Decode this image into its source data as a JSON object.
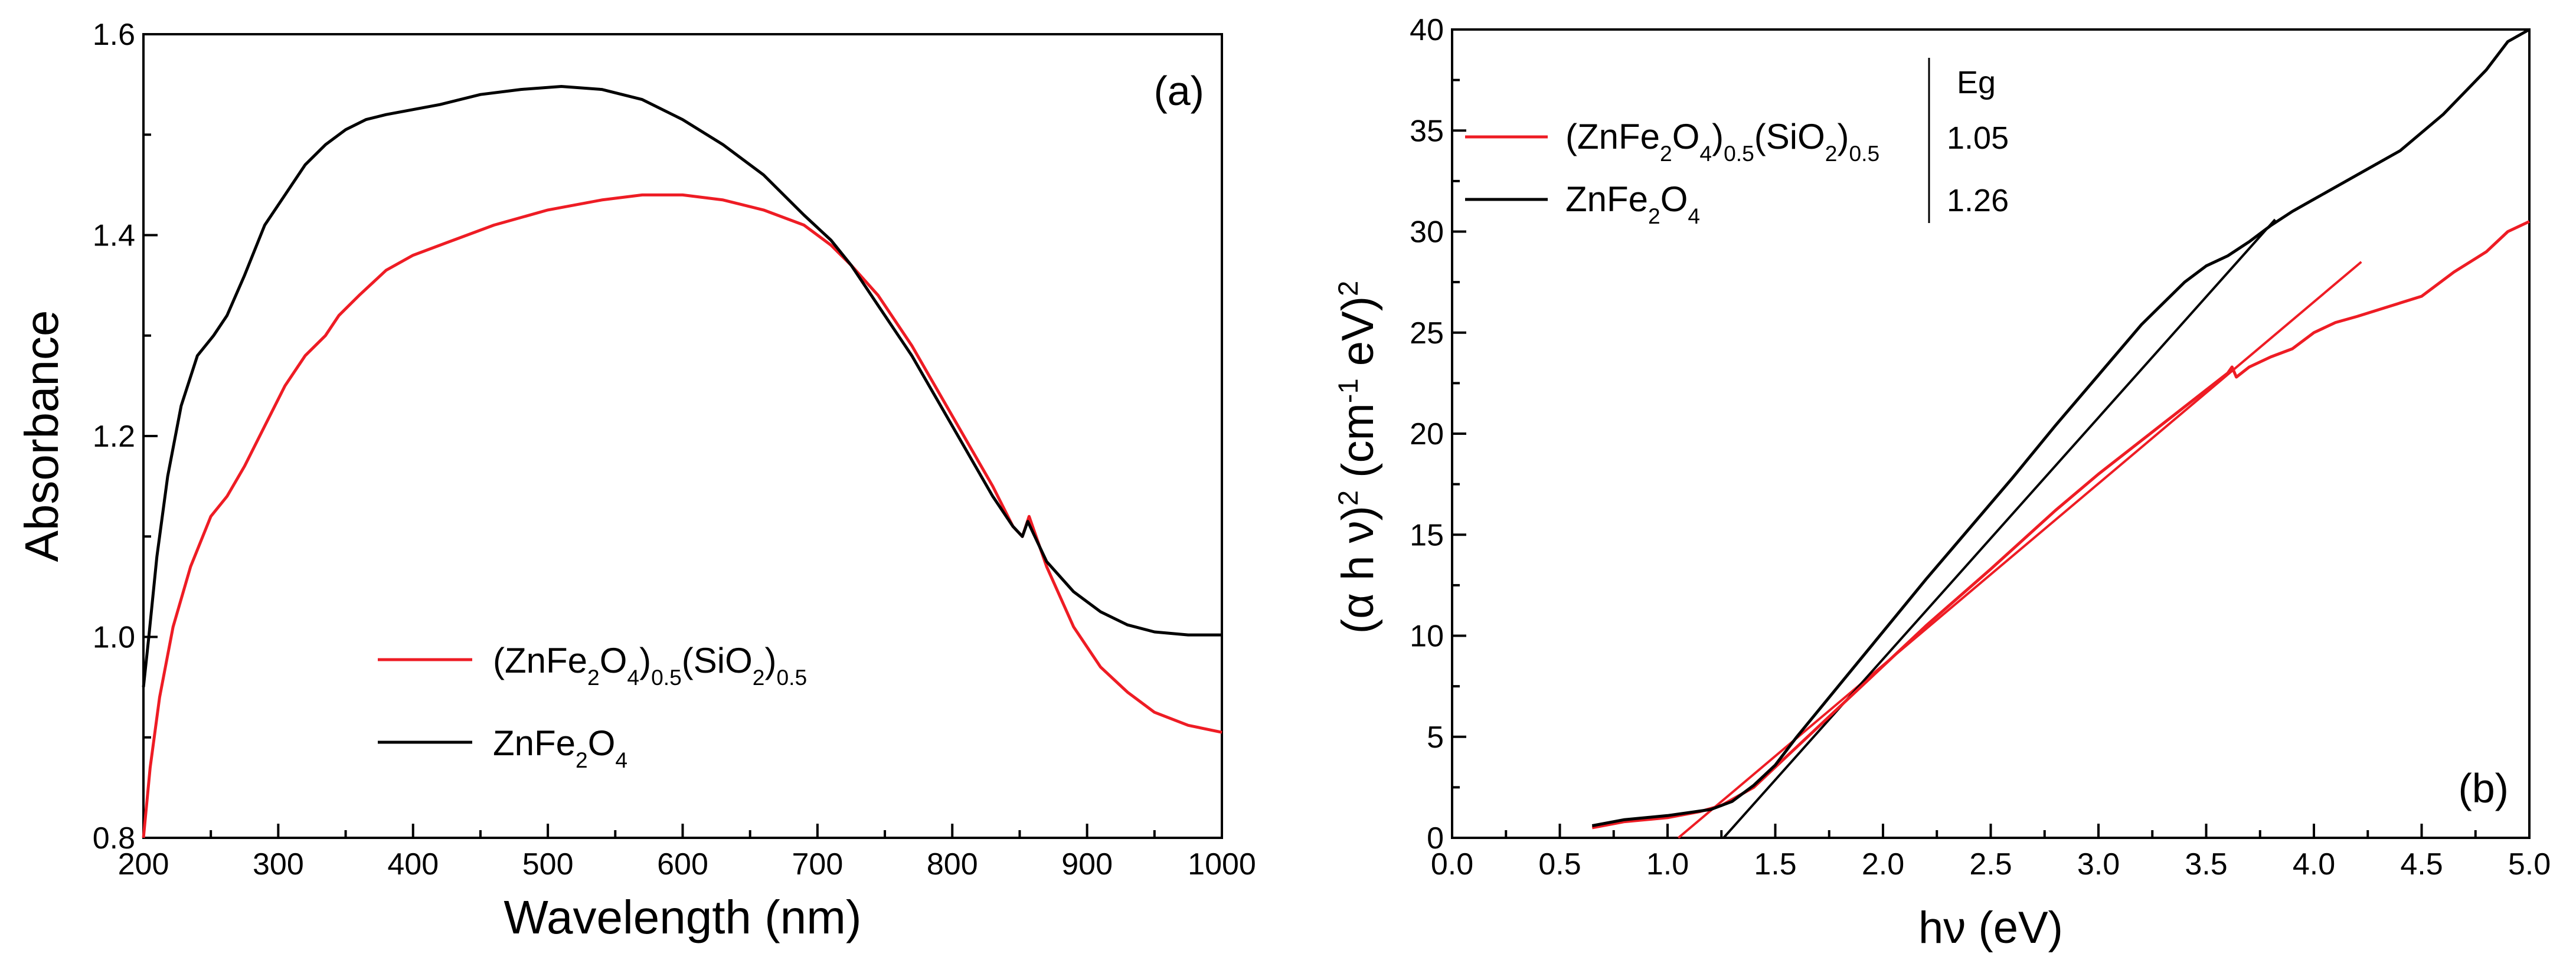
{
  "chart_data": [
    {
      "type": "line",
      "panel_label": "(a)",
      "xlabel": "Wavelength  (nm)",
      "ylabel": "Absorbance",
      "xlim": [
        200,
        1000
      ],
      "ylim": [
        0.8,
        1.6
      ],
      "x_ticks": [
        200,
        300,
        400,
        500,
        600,
        700,
        800,
        900,
        1000
      ],
      "x_tick_labels": [
        "200",
        "300",
        "400",
        "500",
        "600",
        "700",
        "800",
        "900",
        "1000"
      ],
      "y_ticks": [
        0.8,
        1.0,
        1.2,
        1.4,
        1.6
      ],
      "y_tick_labels": [
        "0.8",
        "1.0",
        "1.2",
        "1.4",
        "1.6"
      ],
      "legend_position": "bottom-center",
      "series": [
        {
          "name": "(ZnFe2O4)0.5(SiO2)0.5",
          "label_parts": [
            [
              "(ZnFe",
              "n"
            ],
            [
              "2",
              "sub"
            ],
            [
              "O",
              "n"
            ],
            [
              "4",
              "sub"
            ],
            [
              ")",
              "n"
            ],
            [
              "0.5",
              "sub"
            ],
            [
              "(SiO",
              "n"
            ],
            [
              "2",
              "sub"
            ],
            [
              ")",
              "n"
            ],
            [
              "0.5",
              "sub"
            ]
          ],
          "color": "#ee1c24",
          "x": [
            200,
            205,
            212,
            222,
            235,
            250,
            262,
            275,
            290,
            305,
            320,
            335,
            345,
            360,
            380,
            400,
            430,
            460,
            500,
            540,
            570,
            600,
            630,
            660,
            690,
            710,
            725,
            745,
            770,
            800,
            830,
            845,
            852,
            857,
            870,
            890,
            910,
            930,
            950,
            975,
            1000
          ],
          "y": [
            0.8,
            0.87,
            0.94,
            1.01,
            1.07,
            1.12,
            1.14,
            1.17,
            1.21,
            1.25,
            1.28,
            1.3,
            1.32,
            1.34,
            1.365,
            1.38,
            1.395,
            1.41,
            1.425,
            1.435,
            1.44,
            1.44,
            1.435,
            1.425,
            1.41,
            1.39,
            1.37,
            1.34,
            1.29,
            1.22,
            1.15,
            1.11,
            1.1,
            1.12,
            1.07,
            1.01,
            0.97,
            0.945,
            0.925,
            0.912,
            0.905
          ]
        },
        {
          "name": "ZnFe2O4",
          "label_parts": [
            [
              "ZnFe",
              "n"
            ],
            [
              "2",
              "sub"
            ],
            [
              "O",
              "n"
            ],
            [
              "4",
              "sub"
            ]
          ],
          "color": "#000000",
          "x": [
            200,
            204,
            210,
            218,
            228,
            240,
            252,
            262,
            275,
            290,
            305,
            320,
            335,
            350,
            365,
            380,
            400,
            420,
            450,
            480,
            510,
            540,
            570,
            600,
            630,
            660,
            690,
            710,
            725,
            745,
            770,
            800,
            830,
            845,
            852,
            856,
            870,
            890,
            910,
            930,
            950,
            975,
            1000
          ],
          "y": [
            0.95,
            1.0,
            1.08,
            1.16,
            1.23,
            1.28,
            1.3,
            1.32,
            1.36,
            1.41,
            1.44,
            1.47,
            1.49,
            1.505,
            1.515,
            1.52,
            1.525,
            1.53,
            1.54,
            1.545,
            1.548,
            1.545,
            1.535,
            1.515,
            1.49,
            1.46,
            1.42,
            1.395,
            1.37,
            1.33,
            1.28,
            1.21,
            1.14,
            1.11,
            1.1,
            1.115,
            1.075,
            1.045,
            1.025,
            1.012,
            1.005,
            1.002,
            1.002
          ]
        }
      ]
    },
    {
      "type": "line",
      "panel_label": "(b)",
      "xlabel": "hν  (eV)",
      "ylabel_parts": [
        [
          "(α h ν)",
          "n"
        ],
        [
          "2",
          "sup"
        ],
        [
          "  (cm",
          "n"
        ],
        [
          "-1",
          "sup"
        ],
        [
          "  eV)",
          "n"
        ],
        [
          "2",
          "sup"
        ]
      ],
      "xlim": [
        0.0,
        5.0
      ],
      "ylim": [
        0,
        40
      ],
      "x_ticks": [
        0.0,
        0.5,
        1.0,
        1.5,
        2.0,
        2.5,
        3.0,
        3.5,
        4.0,
        4.5,
        5.0
      ],
      "x_tick_labels": [
        "0.0",
        "0.5",
        "1.0",
        "1.5",
        "2.0",
        "2.5",
        "3.0",
        "3.5",
        "4.0",
        "4.5",
        "5.0"
      ],
      "y_ticks": [
        0,
        5,
        10,
        15,
        20,
        25,
        30,
        35,
        40
      ],
      "y_tick_labels": [
        "0",
        "5",
        "10",
        "15",
        "20",
        "25",
        "30",
        "35",
        "40"
      ],
      "legend_position": "top-left",
      "eg_header": "Eg",
      "series": [
        {
          "name": "(ZnFe2O4)0.5(SiO2)0.5",
          "label_parts": [
            [
              "(ZnFe",
              "n"
            ],
            [
              "2",
              "sub"
            ],
            [
              "O",
              "n"
            ],
            [
              "4",
              "sub"
            ],
            [
              ")",
              "n"
            ],
            [
              "0.5",
              "sub"
            ],
            [
              "(SiO",
              "n"
            ],
            [
              "2",
              "sub"
            ],
            [
              ")",
              "n"
            ],
            [
              "0.5",
              "sub"
            ]
          ],
          "eg": "1.05",
          "color": "#ee1c24",
          "x": [
            0.65,
            0.8,
            1.0,
            1.15,
            1.25,
            1.4,
            1.6,
            1.8,
            2.0,
            2.2,
            2.5,
            2.8,
            3.0,
            3.3,
            3.6,
            3.62,
            3.64,
            3.7,
            3.8,
            3.9,
            4.0,
            4.1,
            4.2,
            4.35,
            4.5,
            4.65,
            4.8,
            4.9,
            5.0
          ],
          "y": [
            0.5,
            0.8,
            1.0,
            1.3,
            1.6,
            2.5,
            4.5,
            6.5,
            8.5,
            10.5,
            13.3,
            16.2,
            18.0,
            20.5,
            23.0,
            23.3,
            22.8,
            23.3,
            23.8,
            24.2,
            25.0,
            25.5,
            25.8,
            26.3,
            26.8,
            28.0,
            29.0,
            30.0,
            30.5
          ]
        },
        {
          "name": "ZnFe2O4",
          "label_parts": [
            [
              "ZnFe",
              "n"
            ],
            [
              "2",
              "sub"
            ],
            [
              "O",
              "n"
            ],
            [
              "4",
              "sub"
            ]
          ],
          "eg": "1.26",
          "color": "#000000",
          "x": [
            0.65,
            0.8,
            1.0,
            1.2,
            1.3,
            1.4,
            1.5,
            1.6,
            1.8,
            2.0,
            2.2,
            2.4,
            2.6,
            2.8,
            3.0,
            3.2,
            3.4,
            3.5,
            3.6,
            3.7,
            3.8,
            3.9,
            4.0,
            4.2,
            4.4,
            4.6,
            4.8,
            4.9,
            5.0
          ],
          "y": [
            0.6,
            0.9,
            1.1,
            1.4,
            1.8,
            2.6,
            3.6,
            5.0,
            7.6,
            10.2,
            12.8,
            15.3,
            17.8,
            20.4,
            22.9,
            25.4,
            27.5,
            28.3,
            28.8,
            29.5,
            30.3,
            31.0,
            31.6,
            32.8,
            34.0,
            35.8,
            38.0,
            39.4,
            40.0
          ]
        }
      ],
      "fit_lines": [
        {
          "name": "(ZnFe2O4)0.5(SiO2)0.5 linear fit",
          "color": "#ee1c24",
          "x": [
            1.05,
            4.22
          ],
          "y": [
            0,
            28.5
          ]
        },
        {
          "name": "ZnFe2O4 linear fit",
          "color": "#000000",
          "x": [
            1.26,
            3.82
          ],
          "y": [
            0,
            30.6
          ]
        }
      ]
    }
  ]
}
